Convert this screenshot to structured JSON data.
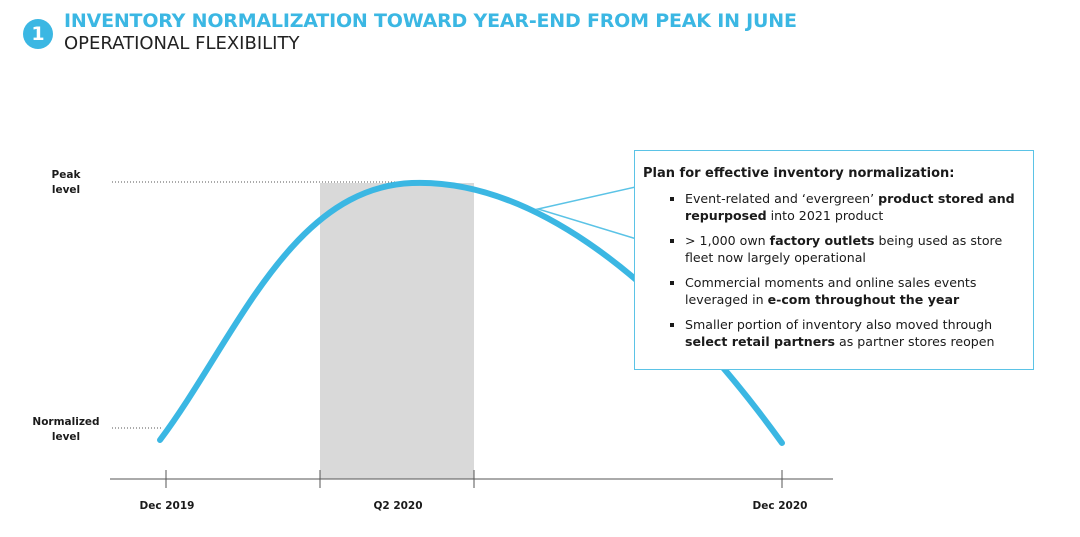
{
  "header": {
    "badge": "1",
    "title": "INVENTORY NORMALIZATION TOWARD YEAR-END FROM PEAK IN JUNE",
    "subtitle": "OPERATIONAL FLEXIBILITY"
  },
  "diagram": {
    "y_labels": {
      "peak": "Peak level",
      "normalized": "Normalized level"
    },
    "x_labels": [
      "Dec 2019",
      "Q2 2020",
      "Dec 2020"
    ]
  },
  "callout": {
    "title": "Plan for effective inventory normalization:",
    "bullets": [
      [
        {
          "text": "Event-related and ‘evergreen’ ",
          "bold": false
        },
        {
          "text": "product stored and repurposed",
          "bold": true
        },
        {
          "text": " into 2021 product",
          "bold": false
        }
      ],
      [
        {
          "text": "> 1,000 own ",
          "bold": false
        },
        {
          "text": "factory outlets",
          "bold": true
        },
        {
          "text": " being used as store fleet now largely operational",
          "bold": false
        }
      ],
      [
        {
          "text": "Commercial moments and online sales events leveraged in ",
          "bold": false
        },
        {
          "text": "e-com throughout the year",
          "bold": true
        }
      ],
      [
        {
          "text": "Smaller portion of inventory also moved through ",
          "bold": false
        },
        {
          "text": "select retail partners",
          "bold": true
        },
        {
          "text": " as partner stores reopen",
          "bold": false
        }
      ]
    ]
  }
}
